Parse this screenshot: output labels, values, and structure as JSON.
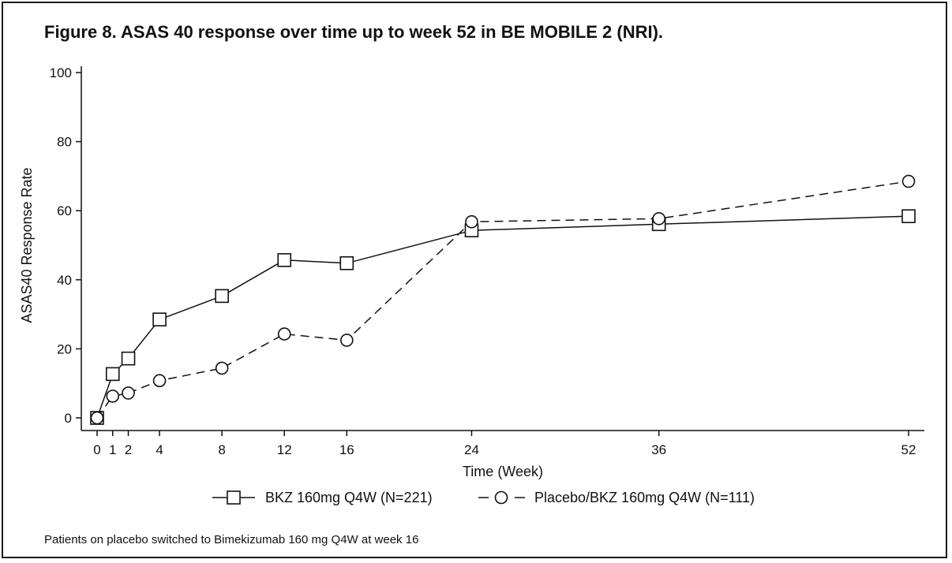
{
  "figure": {
    "title": "Figure 8. ASAS 40 response over time up to week 52 in BE MOBILE 2 (NRI).",
    "footnote": "Patients on placebo switched to Bimekizumab 160 mg Q4W at week 16"
  },
  "chart_data": {
    "type": "line",
    "title": "Figure 8. ASAS 40 response over time up to week 52 in BE MOBILE 2 (NRI).",
    "xlabel": "Time (Week)",
    "ylabel": "ASAS40 Response Rate",
    "xlim": [
      0,
      52
    ],
    "ylim": [
      0,
      100
    ],
    "x_ticks": [
      0,
      1,
      2,
      4,
      8,
      12,
      16,
      24,
      36,
      52
    ],
    "y_ticks": [
      0,
      20,
      40,
      60,
      80,
      100
    ],
    "grid": false,
    "legend_position": "bottom",
    "series": [
      {
        "name": "BKZ 160mg Q4W (N=221)",
        "marker": "square",
        "line_style": "solid",
        "color": "#111111",
        "x": [
          0,
          1,
          2,
          4,
          8,
          12,
          16,
          24,
          36,
          52
        ],
        "values": [
          0,
          12.7,
          17.2,
          28.5,
          35.3,
          45.7,
          44.8,
          54.3,
          56.1,
          58.4
        ]
      },
      {
        "name": "Placebo/BKZ 160mg Q4W (N=111)",
        "marker": "circle",
        "line_style": "dashed",
        "color": "#111111",
        "x": [
          0,
          1,
          2,
          4,
          8,
          12,
          16,
          24,
          36,
          52
        ],
        "values": [
          0,
          6.3,
          7.2,
          10.8,
          14.4,
          24.3,
          22.5,
          56.8,
          57.7,
          68.5
        ]
      }
    ]
  }
}
